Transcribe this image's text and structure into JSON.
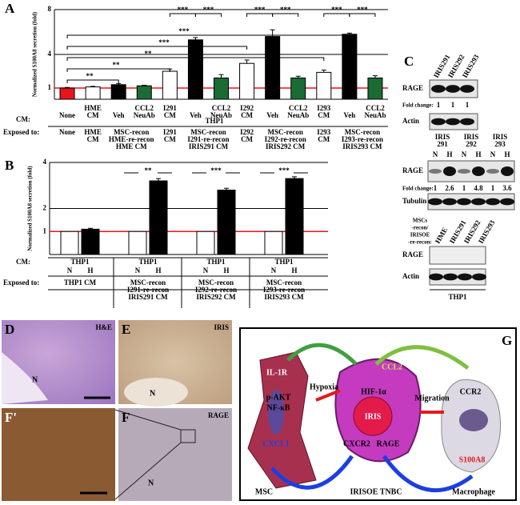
{
  "panel_labels": {
    "a": "A",
    "b": "B",
    "c": "C",
    "d": "D",
    "e": "E",
    "f": "F",
    "f2": "F'",
    "g": "G"
  },
  "chart_data": [
    {
      "type": "bar",
      "ylabel": "Normalized S100A8 secretion (fold)",
      "categories": [
        [
          "None"
        ],
        [
          "HME",
          "CM"
        ],
        [
          "Veh"
        ],
        [
          "CCL2",
          "NeuAb"
        ],
        [
          "I291",
          "CM"
        ],
        [
          "Veh"
        ],
        [
          "CCL2",
          "NeuAb"
        ],
        [
          "I292",
          "CM"
        ],
        [
          "Veh"
        ],
        [
          "CCL2",
          "NeuAb"
        ],
        [
          "I293",
          "CM"
        ],
        [
          "Veh"
        ],
        [
          "CCL2",
          "NeuAb"
        ]
      ],
      "values": [
        1,
        1.1,
        1.3,
        1.2,
        2.5,
        5.3,
        1.9,
        3.2,
        5.6,
        1.9,
        2.4,
        5.8,
        1.9
      ],
      "errors": [
        0.05,
        0.05,
        0.1,
        0.05,
        0.2,
        0.2,
        0.3,
        0.3,
        0.6,
        0.15,
        0.2,
        0.1,
        0.2
      ],
      "colors": [
        "#e8141c",
        "#ffffff",
        "#000000",
        "#1a6b34",
        "#ffffff",
        "#000000",
        "#1a6b34",
        "#ffffff",
        "#000000",
        "#1a6b34",
        "#ffffff",
        "#000000",
        "#1a6b34"
      ],
      "reference_line": 1,
      "reference_color": "#e8141c",
      "ylim": [
        0,
        8
      ],
      "yticks": [
        1,
        4,
        8
      ],
      "grid": true,
      "cm_label": "CM:",
      "group_label": "THP1",
      "exposed_label": "Exposed to:",
      "exposed": [
        [
          "None"
        ],
        [
          "HME",
          "CM"
        ],
        [
          "MSC-recon",
          "HME-re-recon",
          "HME CM"
        ],
        [
          "I291",
          "CM"
        ],
        [
          "MSC-recon",
          "I291-re-recon",
          "IRIS291 CM"
        ],
        [
          "I292",
          "CM"
        ],
        [
          "MSC-recon",
          "I292-re-recon",
          "IRIS292 CM"
        ],
        [
          "I293",
          "CM"
        ],
        [
          "MSC-recon",
          "I293-re-recon",
          "IRIS293 CM"
        ]
      ],
      "annotations": [
        "**",
        "**",
        "**",
        "***",
        "***",
        "***",
        "***",
        "***",
        "***",
        "***",
        "***"
      ]
    },
    {
      "type": "bar",
      "ylabel": "Normalized S100A8 secretion (fold)",
      "categories": [
        "N",
        "H",
        "N",
        "H",
        "N",
        "H",
        "N",
        "H"
      ],
      "values": [
        1,
        1.1,
        1,
        3.2,
        1,
        2.8,
        1,
        3.3
      ],
      "errors": [
        0,
        0.04,
        0,
        0.1,
        0,
        0.08,
        0,
        0.08
      ],
      "colors": [
        "#ffffff",
        "#000000",
        "#ffffff",
        "#000000",
        "#ffffff",
        "#000000",
        "#ffffff",
        "#000000"
      ],
      "reference_line": 1,
      "reference_color": "#e8141c",
      "ylim": [
        0,
        4
      ],
      "yticks": [
        1,
        2,
        4
      ],
      "grid": true,
      "cm_label": "CM:",
      "groups": [
        "THP1",
        "THP1",
        "THP1",
        "THP1"
      ],
      "exposed_label": "Exposed to:",
      "exposed": [
        [
          "THP1 CM"
        ],
        [
          "MSC-recon",
          "I291-re-recon",
          "IRIS291 CM"
        ],
        [
          "MSC-recon",
          "I292-re-recon",
          "IRIS292 CM"
        ],
        [
          "MSC-recon",
          "I293-re-recon",
          "IRIS293 CM"
        ]
      ],
      "annotations": [
        "**",
        "***",
        "***"
      ]
    }
  ],
  "blots": {
    "top": {
      "headers": [
        "IRIS291",
        "IRIS292",
        "IRIS293"
      ],
      "rows": [
        "RAGE",
        "Actin"
      ],
      "fold_label": "Fold change:",
      "fold": [
        1,
        1,
        1
      ]
    },
    "middle": {
      "headers": [
        [
          "IRIS",
          "291"
        ],
        [
          "IRIS",
          "292"
        ],
        [
          "IRIS",
          "293"
        ]
      ],
      "lanes": [
        "N",
        "H",
        "N",
        "H",
        "N",
        "H"
      ],
      "rows": [
        "RAGE",
        "Tubulin"
      ],
      "fold_label": "Fold change:",
      "fold": [
        1,
        2.6,
        1,
        4.8,
        1,
        3.6
      ]
    },
    "bottom": {
      "side": [
        "MSCs",
        "-recon/",
        "IRISOE",
        "-re-recon:"
      ],
      "headers": [
        "HME",
        "IRIS291",
        "IRIS292",
        "IRIS293"
      ],
      "rows": [
        "RAGE",
        "Actin"
      ],
      "footer": "THP1"
    }
  },
  "images": {
    "d": "H&E",
    "e": "IRIS",
    "f": "RAGE",
    "n": "N"
  },
  "diagram": {
    "il1r": "IL-1R",
    "pakt": "p-AKT",
    "nfkb": "NF-κB",
    "cxcl1": "CXCL1",
    "hypoxia": "Hypoxia",
    "hif": "HIF-1α",
    "ccl2": "CCL2",
    "iris": "IRIS",
    "cxcr2": "CXCR2",
    "rage": "RAGE",
    "migration": "Migration",
    "ccr2": "CCR2",
    "s100a8": "S100A8",
    "msc": "MSC",
    "tnbc": "IRISOE TNBC",
    "macrophage": "Macrophage"
  }
}
